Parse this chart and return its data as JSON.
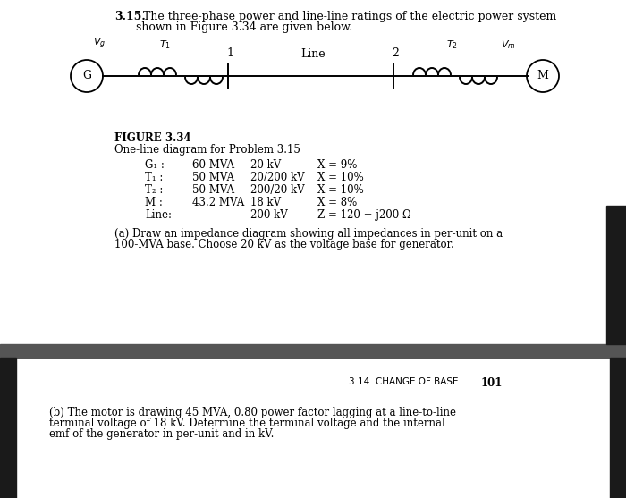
{
  "title_bold": "3.15.",
  "title_line1": "  The three-phase power and line-line ratings of the electric power system",
  "title_line2": "shown in Figure 3.34 are given below.",
  "figure_label": "FIGURE 3.34",
  "figure_caption": "One-line diagram for Problem 3.15",
  "table_rows": [
    [
      "G₁ :",
      "60 MVA",
      "20 kV",
      "X = 9%"
    ],
    [
      "T₁ :",
      "50 MVA",
      "20/200 kV",
      "X = 10%"
    ],
    [
      "T₂ :",
      "50 MVA",
      "200/20 kV",
      "X = 10%"
    ],
    [
      "M :",
      "43.2 MVA",
      "18 kV",
      "X = 8%"
    ],
    [
      "Line:",
      "",
      "200 kV",
      "Z = 120 + j200 Ω"
    ]
  ],
  "part_a_line1": "(a) Draw an impedance diagram showing all impedances in per-unit on a",
  "part_a_line2": "100-MVA base. Choose 20 kV as the voltage base for generator.",
  "section_label": "3.14. CHANGE OF BASE",
  "page_number": "101",
  "part_b_line1": "(b) The motor is drawing 45 MVA, 0.80 power factor lagging at a line-to-line",
  "part_b_line2": "terminal voltage of 18 kV. Determine the terminal voltage and the internal",
  "part_b_line3": "emf of the generator in per-unit and in kV.",
  "bg_color": "#ffffff",
  "text_color": "#000000",
  "separator_color": "#555555",
  "black_bar_color": "#1a1a1a"
}
